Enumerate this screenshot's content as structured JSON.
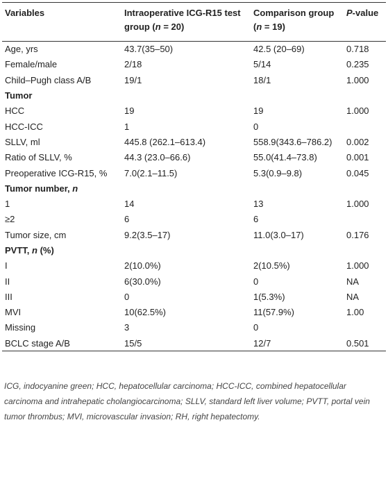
{
  "table": {
    "header": [
      [
        {
          "text": "Variables"
        }
      ],
      [
        {
          "text": "Intraoperative ICG-R15 test group ("
        },
        {
          "text": "n",
          "italic": true
        },
        {
          "text": " = 20)"
        }
      ],
      [
        {
          "text": "Comparison group ("
        },
        {
          "text": "n",
          "italic": true
        },
        {
          "text": " = 19)"
        }
      ],
      [
        {
          "text": "P",
          "italic": true
        },
        {
          "text": "-value"
        }
      ]
    ],
    "rows": [
      {
        "cells": [
          "Age, yrs",
          "43.7(35–50)",
          "42.5 (20–69)",
          "0.718"
        ]
      },
      {
        "cells": [
          "Female/male",
          "2/18",
          "5/14",
          "0.235"
        ]
      },
      {
        "cells": [
          "Child–Pugh class A/B",
          "19/1",
          "18/1",
          "1.000"
        ]
      },
      {
        "section": [
          {
            "text": "Tumor"
          }
        ]
      },
      {
        "cells": [
          "HCC",
          "19",
          "19",
          "1.000"
        ]
      },
      {
        "cells": [
          "HCC-ICC",
          "1",
          "0",
          null
        ]
      },
      {
        "cells": [
          "SLLV, ml",
          "445.8 (262.1–613.4)",
          "558.9(343.6–786.2)",
          "0.002"
        ]
      },
      {
        "cells": [
          "Ratio of SLLV, %",
          "44.3 (23.0–66.6)",
          "55.0(41.4–73.8)",
          "0.001"
        ]
      },
      {
        "cells": [
          "Preoperative ICG-R15, %",
          "7.0(2.1–11.5)",
          "5.3(0.9–9.8)",
          "0.045"
        ]
      },
      {
        "section": [
          {
            "text": "Tumor number, "
          },
          {
            "text": "n",
            "italic": true
          }
        ]
      },
      {
        "cells": [
          "1",
          "14",
          "13",
          "1.000"
        ]
      },
      {
        "cells": [
          "≥2",
          "6",
          "6",
          null
        ]
      },
      {
        "cells": [
          "Tumor size, cm",
          "9.2(3.5–17)",
          "11.0(3.0–17)",
          "0.176"
        ]
      },
      {
        "section": [
          {
            "text": "PVTT, "
          },
          {
            "text": "n",
            "italic": true
          },
          {
            "text": " (%)"
          }
        ]
      },
      {
        "cells": [
          "I",
          "2(10.0%)",
          "2(10.5%)",
          "1.000"
        ]
      },
      {
        "cells": [
          "II",
          "6(30.0%)",
          "0",
          "NA"
        ]
      },
      {
        "cells": [
          "III",
          "0",
          "1(5.3%)",
          "NA"
        ]
      },
      {
        "cells": [
          "MVI",
          "10(62.5%)",
          "11(57.9%)",
          "1.00"
        ]
      },
      {
        "cells": [
          "Missing",
          "3",
          "0",
          null
        ]
      },
      {
        "cells": [
          "BCLC stage A/B",
          "15/5",
          "12/7",
          "0.501"
        ]
      }
    ]
  },
  "footnote": "ICG, indocyanine green; HCC, hepatocellular carcinoma; HCC-ICC, combined hepatocellular carcinoma and intrahepatic cholangiocarcinoma; SLLV, standard left liver volume; PVTT, portal vein tumor thrombus; MVI, microvascular invasion; RH, right hepatectomy."
}
